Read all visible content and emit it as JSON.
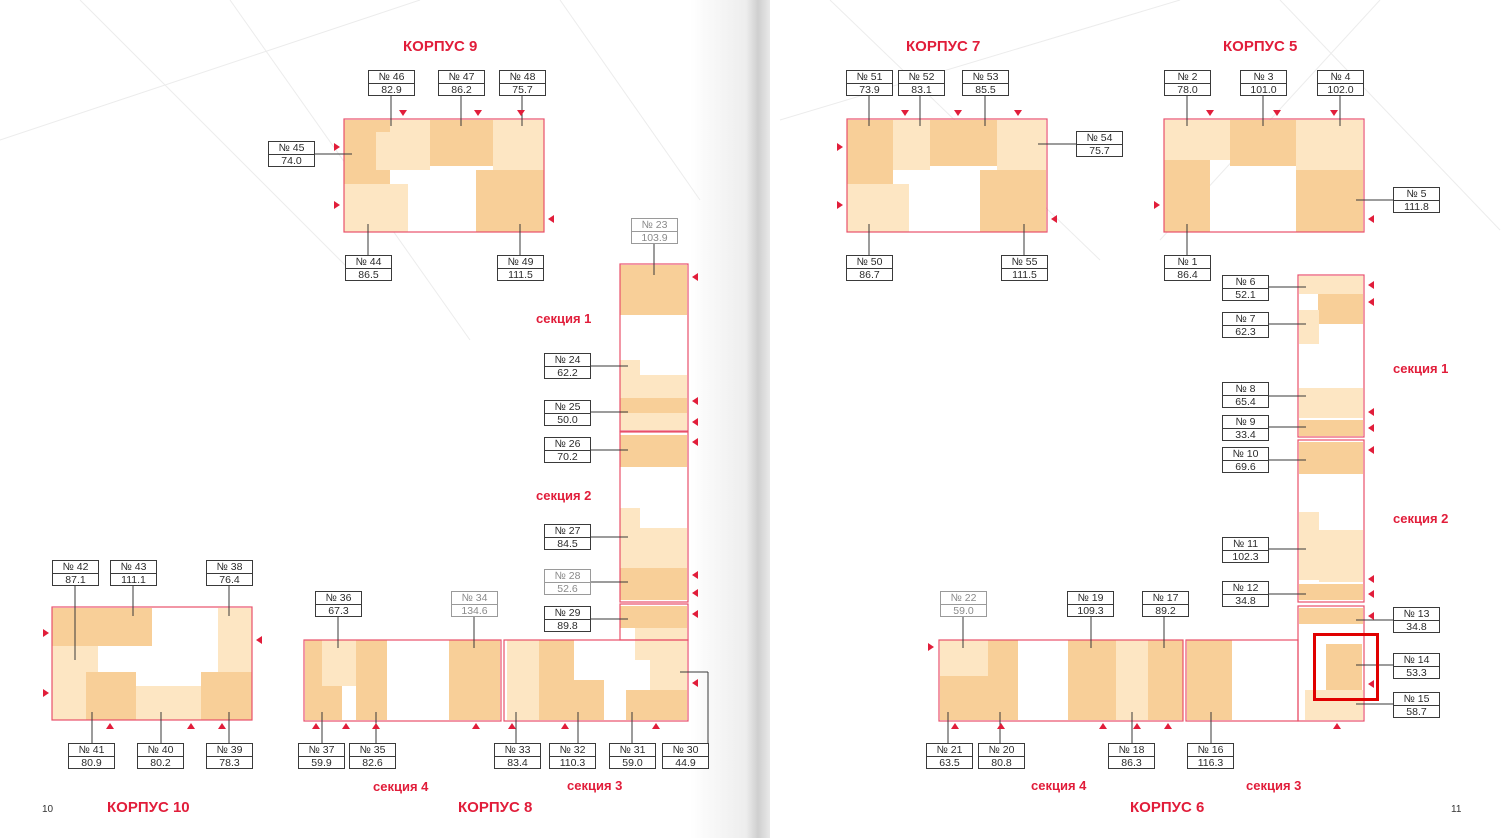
{
  "pages": {
    "left_number": "10",
    "right_number": "11"
  },
  "buildings": {
    "k9": "КОРПУС 9",
    "k7": "КОРПУС 7",
    "k5": "КОРПУС 5",
    "k10": "КОРПУС 10",
    "k8": "КОРПУС 8",
    "k6": "КОРПУС 6"
  },
  "sections": {
    "k8_s1": "секция 1",
    "k8_s2": "секция 2",
    "k8_s3": "секция 3",
    "k8_s4": "секция 4",
    "k6_s1": "секция 1",
    "k6_s2": "секция 2",
    "k6_s3": "секция 3",
    "k6_s4": "секция 4"
  },
  "apartments": {
    "a1": {
      "no": "№ 1",
      "area": "86.4"
    },
    "a2": {
      "no": "№ 2",
      "area": "78.0"
    },
    "a3": {
      "no": "№ 3",
      "area": "101.0"
    },
    "a4": {
      "no": "№ 4",
      "area": "102.0"
    },
    "a5": {
      "no": "№ 5",
      "area": "111.8"
    },
    "a6": {
      "no": "№ 6",
      "area": "52.1"
    },
    "a7": {
      "no": "№ 7",
      "area": "62.3"
    },
    "a8": {
      "no": "№ 8",
      "area": "65.4"
    },
    "a9": {
      "no": "№ 9",
      "area": "33.4"
    },
    "a10": {
      "no": "№ 10",
      "area": "69.6"
    },
    "a11": {
      "no": "№ 11",
      "area": "102.3"
    },
    "a12": {
      "no": "№ 12",
      "area": "34.8"
    },
    "a13": {
      "no": "№ 13",
      "area": "34.8"
    },
    "a14": {
      "no": "№ 14",
      "area": "53.3"
    },
    "a15": {
      "no": "№ 15",
      "area": "58.7"
    },
    "a16": {
      "no": "№ 16",
      "area": "116.3"
    },
    "a17": {
      "no": "№ 17",
      "area": "89.2"
    },
    "a18": {
      "no": "№ 18",
      "area": "86.3"
    },
    "a19": {
      "no": "№ 19",
      "area": "109.3"
    },
    "a20": {
      "no": "№ 20",
      "area": "80.8"
    },
    "a21": {
      "no": "№ 21",
      "area": "63.5"
    },
    "a22": {
      "no": "№ 22",
      "area": "59.0"
    },
    "a23": {
      "no": "№ 23",
      "area": "103.9"
    },
    "a24": {
      "no": "№ 24",
      "area": "62.2"
    },
    "a25": {
      "no": "№ 25",
      "area": "50.0"
    },
    "a26": {
      "no": "№ 26",
      "area": "70.2"
    },
    "a27": {
      "no": "№ 27",
      "area": "84.5"
    },
    "a28": {
      "no": "№ 28",
      "area": "52.6"
    },
    "a29": {
      "no": "№ 29",
      "area": "89.8"
    },
    "a30": {
      "no": "№ 30",
      "area": "44.9"
    },
    "a31": {
      "no": "№ 31",
      "area": "59.0"
    },
    "a32": {
      "no": "№ 32",
      "area": "110.3"
    },
    "a33": {
      "no": "№ 33",
      "area": "83.4"
    },
    "a34": {
      "no": "№ 34",
      "area": "134.6"
    },
    "a35": {
      "no": "№ 35",
      "area": "82.6"
    },
    "a36": {
      "no": "№ 36",
      "area": "67.3"
    },
    "a37": {
      "no": "№ 37",
      "area": "59.9"
    },
    "a38": {
      "no": "№ 38",
      "area": "76.4"
    },
    "a39": {
      "no": "№ 39",
      "area": "78.3"
    },
    "a40": {
      "no": "№ 40",
      "area": "80.2"
    },
    "a41": {
      "no": "№ 41",
      "area": "80.9"
    },
    "a42": {
      "no": "№ 42",
      "area": "87.1"
    },
    "a43": {
      "no": "№ 43",
      "area": "111.1"
    },
    "a44": {
      "no": "№ 44",
      "area": "86.5"
    },
    "a45": {
      "no": "№ 45",
      "area": "74.0"
    },
    "a46": {
      "no": "№ 46",
      "area": "82.9"
    },
    "a47": {
      "no": "№ 47",
      "area": "86.2"
    },
    "a48": {
      "no": "№ 48",
      "area": "75.7"
    },
    "a49": {
      "no": "№ 49",
      "area": "111.5"
    },
    "a50": {
      "no": "№ 50",
      "area": "86.7"
    },
    "a51": {
      "no": "№ 51",
      "area": "73.9"
    },
    "a52": {
      "no": "№ 52",
      "area": "83.1"
    },
    "a53": {
      "no": "№ 53",
      "area": "85.5"
    },
    "a54": {
      "no": "№ 54",
      "area": "75.7"
    },
    "a55": {
      "no": "№ 55",
      "area": "111.5"
    }
  },
  "colors": {
    "accent": "#e11d3a",
    "unit_dark": "#f8cf98",
    "unit_light": "#fde6c3",
    "highlight": "#e00000"
  }
}
